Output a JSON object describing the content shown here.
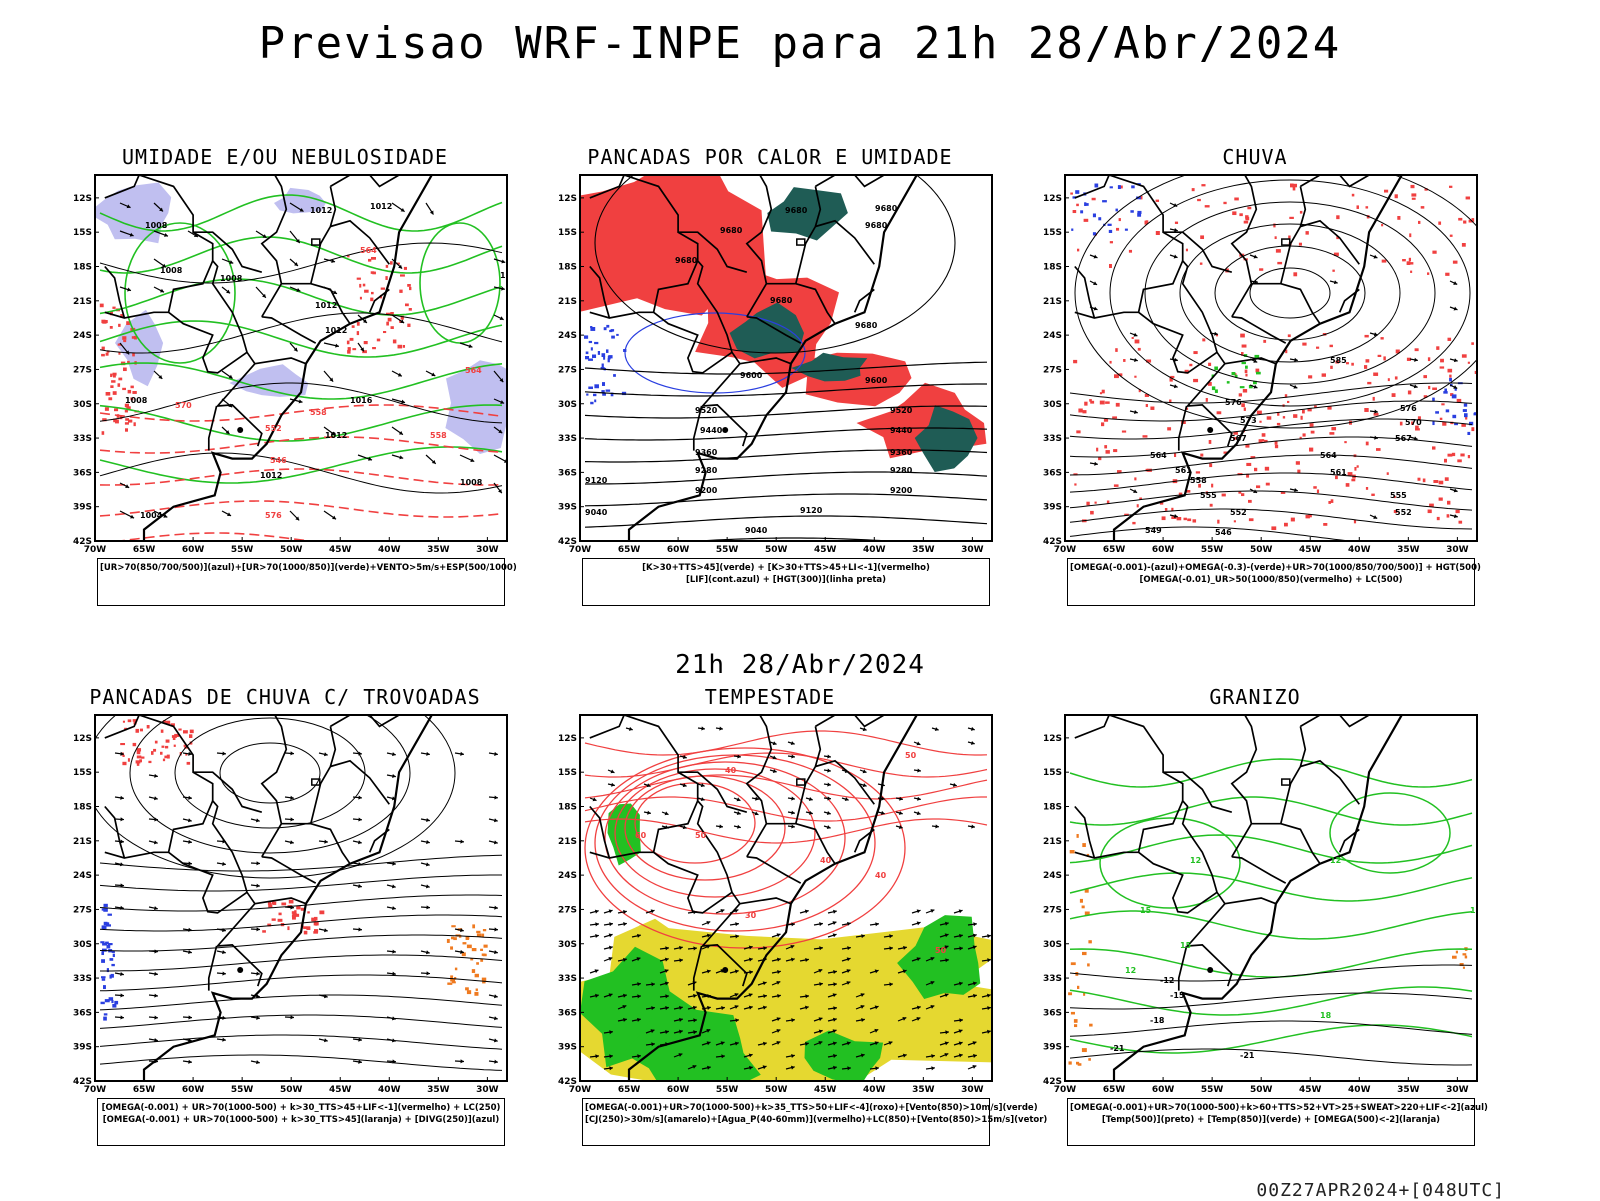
{
  "title": "Previsao WRF-INPE  para 21h 28/Abr/2024",
  "mid_title": "21h 28/Abr/2024",
  "footer": "00Z27APR2024+[048UTC]",
  "lat_labels": [
    "12S",
    "15S",
    "18S",
    "21S",
    "24S",
    "27S",
    "30S",
    "33S",
    "36S",
    "39S",
    "42S"
  ],
  "lon_labels": [
    "70W",
    "65W",
    "60W",
    "55W",
    "50W",
    "45W",
    "40W",
    "35W",
    "30W"
  ],
  "panels": [
    {
      "title": "UMIDADE E/OU NEBULOSIDADE",
      "legend": [
        "[UR>70(850/700/500)](azul)+[UR>70(1000/850)](verde)+VENTO>5m/s+ESP(500/1000)"
      ],
      "contour_labels": [
        "1012",
        "1012",
        "1008",
        "1008",
        "1008",
        "1012",
        "1012",
        "1016",
        "1016",
        "1012",
        "1012",
        "1008",
        "1004",
        "1008",
        "576",
        "564",
        "558",
        "552",
        "546",
        "570",
        "564",
        "558"
      ]
    },
    {
      "title": "PANCADAS POR CALOR E UMIDADE",
      "legend": [
        "[K>30+TTS>45](verde) + [K>30+TTS>45+LI<-1](vermelho)",
        "[LIF](cont.azul) + [HGT(300)](linha preta)"
      ],
      "contour_labels": [
        "9680",
        "9680",
        "9680",
        "9680",
        "9680",
        "9680",
        "9680",
        "9600",
        "9600",
        "9520",
        "9520",
        "9440",
        "9440",
        "9360",
        "9360",
        "9280",
        "9280",
        "9200",
        "9200",
        "9120",
        "9120",
        "9040",
        "9040"
      ]
    },
    {
      "title": "CHUVA",
      "legend": [
        "[OMEGA(-0.001)-(azul)+OMEGA(-0.3)-(verde)+UR>70(1000/850/700/500)] + HGT(500)",
        "[OMEGA(-0.01)_UR>50(1000/850)(vermelho) + LC(500)"
      ],
      "contour_labels": [
        "585",
        "576",
        "576",
        "573",
        "570",
        "567",
        "567",
        "564",
        "564",
        "561",
        "561",
        "558",
        "555",
        "555",
        "552",
        "552",
        "549",
        "546"
      ]
    },
    {
      "title": "PANCADAS DE CHUVA C/ TROVOADAS",
      "legend": [
        "[OMEGA(-0.001) + UR>70(1000-500) + k>30_TTS>45+LIF<-1](vermelho) + LC(250)",
        "[OMEGA(-0.001) + UR>70(1000-500) + k>30_TTS>45](laranja) + [DIVG(250)](azul)"
      ],
      "contour_labels": []
    },
    {
      "title": "TEMPESTADE",
      "legend": [
        "[OMEGA(-0.001)+UR>70(1000-500)+k>35_TTS>50+LIF<-4](roxo)+[Vento(850)>10m/s](verde)",
        "[CJ(250)>30m/s](amarelo)+[Agua_P(40-60mm)](vermelho)+LC(850)+[Vento(850)>15m/s](vetor)"
      ],
      "contour_labels": [
        "40",
        "50",
        "60",
        "50",
        "40",
        "40",
        "30",
        "50"
      ]
    },
    {
      "title": "GRANIZO",
      "legend": [
        "[OMEGA(-0.001)+UR>70(1000-500)+k>60+TTS>52+VT>25+SWEAT>220+LIF<-2](azul)",
        "[Temp(500)](preto) + [Temp(850)](verde) + [OMEGA(500)<-2](laranja)"
      ],
      "contour_labels": [
        "-12",
        "-15",
        "-18",
        "-21",
        "-21",
        "12",
        "12",
        "15",
        "18",
        "15",
        "15",
        "12"
      ]
    }
  ],
  "colors": {
    "blue": "#2a3fe0",
    "green": "#22c022",
    "red": "#f04040",
    "lavender": "#c0bff0",
    "teal": "#1f5c55",
    "yellow": "#e5d830",
    "orange": "#ef7a20",
    "black": "#000000"
  },
  "icons": {
    "wind": "arrow-vector-icon",
    "streamline": "streamline-arrow-icon"
  }
}
